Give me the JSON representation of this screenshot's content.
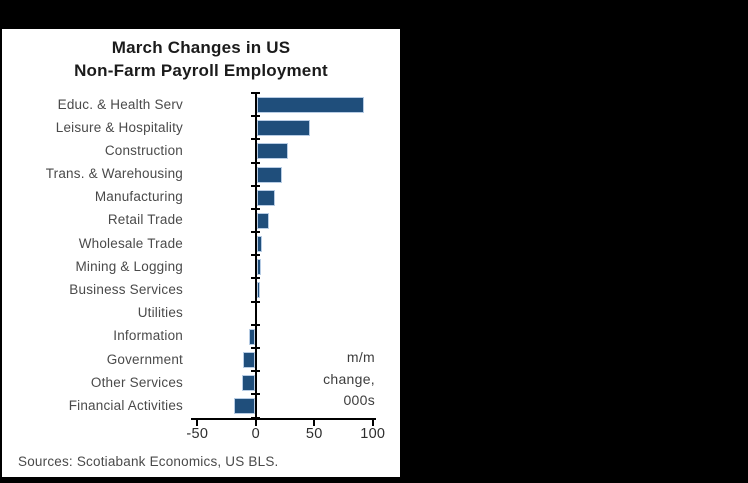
{
  "source_note": "Sources: Scotiabank Economics, US BLS.",
  "chart_data": {
    "type": "bar",
    "orientation": "horizontal",
    "title": "March Changes in US\nNon-Farm Payroll Employment",
    "annotation": "m/m\nchange,\n000s",
    "categories": [
      "Educ. & Health Serv",
      "Leisure & Hospitality",
      "Construction",
      "Trans. & Warehousing",
      "Manufacturing",
      "Retail Trade",
      "Wholesale Trade",
      "Mining & Logging",
      "Business Services",
      "Utilities",
      "Information",
      "Government",
      "Other Services",
      "Financial Activities"
    ],
    "values": [
      91,
      45,
      26,
      21,
      15,
      10,
      4,
      3,
      2,
      0,
      -4,
      -9,
      -10,
      -17
    ],
    "x_ticks": [
      -50,
      0,
      50,
      100
    ],
    "xlim": [
      -55,
      103
    ],
    "grid": false,
    "legend": "none",
    "bar_color": "#1f4e7b",
    "bar_border_color": "#b7cce4",
    "axis_color": "#000000",
    "background_color": "#ffffff",
    "frame_color": "#000000"
  }
}
